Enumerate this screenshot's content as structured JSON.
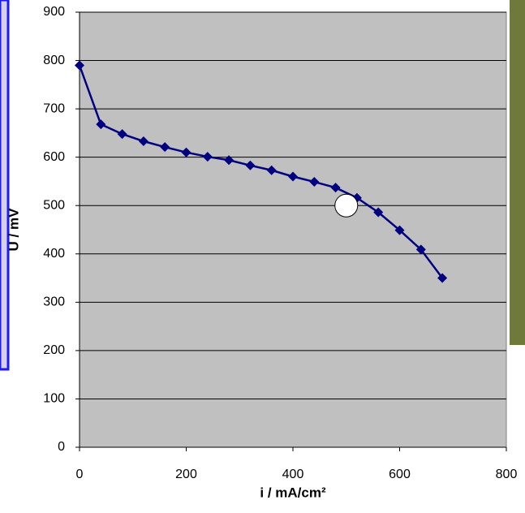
{
  "chart_data": {
    "type": "line",
    "x_label": "i / mA/cm²",
    "y_label": "U / mV",
    "x": [
      0,
      40,
      80,
      120,
      160,
      200,
      240,
      280,
      320,
      360,
      400,
      440,
      480,
      520,
      560,
      600,
      640,
      680
    ],
    "series": [
      {
        "color": "#000080",
        "values": [
          790,
          668,
          648,
          633,
          621,
          610,
          601,
          594,
          583,
          573,
          560,
          549,
          537,
          516,
          486,
          449,
          409,
          350
        ]
      }
    ],
    "marker_point": {
      "x": 500,
      "y": 500
    },
    "xlim": [
      0,
      800
    ],
    "xticks": [
      0,
      200,
      400,
      600,
      800
    ],
    "ylim": [
      0,
      900
    ],
    "yticks": [
      0,
      100,
      200,
      300,
      400,
      500,
      600,
      700,
      800,
      900
    ],
    "grid": true
  }
}
